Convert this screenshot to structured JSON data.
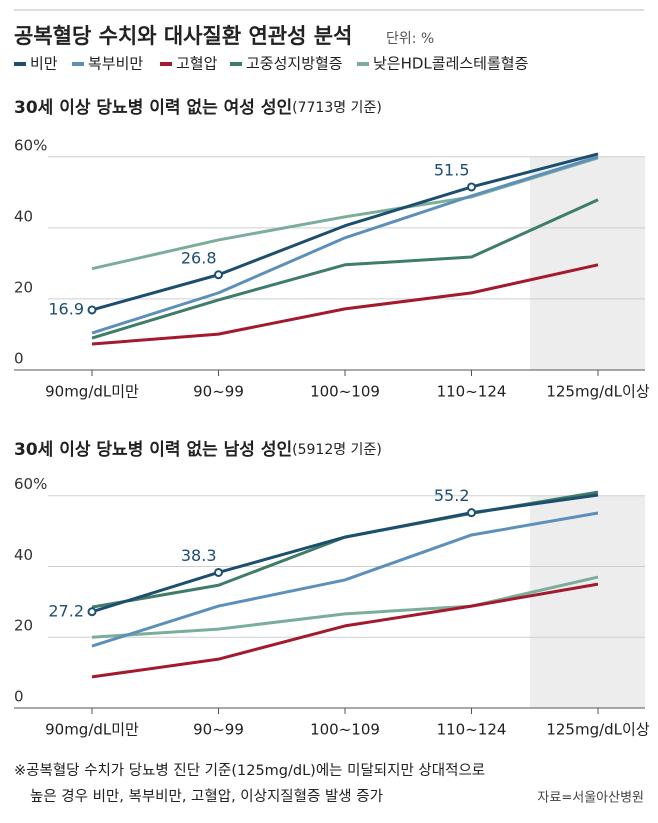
{
  "title": "공복혈당 수치와 대사질환 연관성 분석",
  "unit": "단위: %",
  "chart_data": [
    {
      "type": "line",
      "subtitle": "30세 이상 당뇨병 이력 없는 여성 성인",
      "subtitle_note": "(7713명 기준)",
      "categories": [
        "90mg/dL미만",
        "90~99",
        "100~109",
        "110~124",
        "125mg/dL이상"
      ],
      "ylim": [
        0,
        65
      ],
      "yticks": [
        0,
        20,
        40,
        {
          "value": 60,
          "label": "60%"
        }
      ],
      "grid": true,
      "series": [
        {
          "name": "비만",
          "color": "#1c4f6f",
          "values": [
            16.9,
            26.8,
            40.6,
            51.5,
            60.8
          ],
          "value_labels": [
            "16.9",
            "26.8",
            null,
            "51.5",
            null
          ]
        },
        {
          "name": "복부비만",
          "color": "#5d8fbb",
          "values": [
            10.4,
            21.7,
            37.2,
            49,
            60
          ]
        },
        {
          "name": "고혈압",
          "color": "#a3192d",
          "values": [
            7.3,
            10.1,
            17.2,
            21.7,
            29.6
          ]
        },
        {
          "name": "고중성지방혈증",
          "color": "#3f7c6a",
          "values": [
            9,
            19.7,
            29.6,
            31.8,
            47.9
          ]
        },
        {
          "name": "낮은HDL콜레스테롤혈증",
          "color": "#7cad9a",
          "values": [
            28.5,
            36.6,
            43.1,
            48.7,
            59.7
          ]
        }
      ]
    },
    {
      "type": "line",
      "subtitle": "30세 이상 당뇨병 이력 없는 남성 성인",
      "subtitle_note": "(5912명 기준)",
      "categories": [
        "90mg/dL미만",
        "90~99",
        "100~109",
        "110~124",
        "125mg/dL이상"
      ],
      "ylim": [
        0,
        65
      ],
      "yticks": [
        0,
        20,
        40,
        {
          "value": 60,
          "label": "60%"
        }
      ],
      "grid": true,
      "series": [
        {
          "color": "#1c4f6f",
          "values": [
            27.2,
            38.3,
            48.3,
            55.2,
            60.2
          ],
          "value_labels": [
            "27.2",
            "38.3",
            null,
            "55.2",
            null
          ]
        },
        {
          "color": "#5d8fbb",
          "values": [
            17.5,
            28.8,
            36.2,
            48.9,
            55.1
          ]
        },
        {
          "color": "#a3192d",
          "values": [
            8.8,
            13.8,
            23.2,
            28.8,
            35
          ]
        },
        {
          "color": "#3f7c6a",
          "values": [
            28.5,
            34.7,
            48.3,
            55,
            61
          ]
        },
        {
          "color": "#7cad9a",
          "values": [
            20,
            22.3,
            26.6,
            28.8,
            37
          ]
        }
      ]
    }
  ],
  "footnote": [
    "※공복혈당 수치가 당뇨병 진단 기준(125mg/dL)에는 미달되지만 상대적으로",
    "높은 경우 비만, 복부비만, 고혈압, 이상지질혈증 발생 증가"
  ],
  "source": "자료=서울아산병원"
}
